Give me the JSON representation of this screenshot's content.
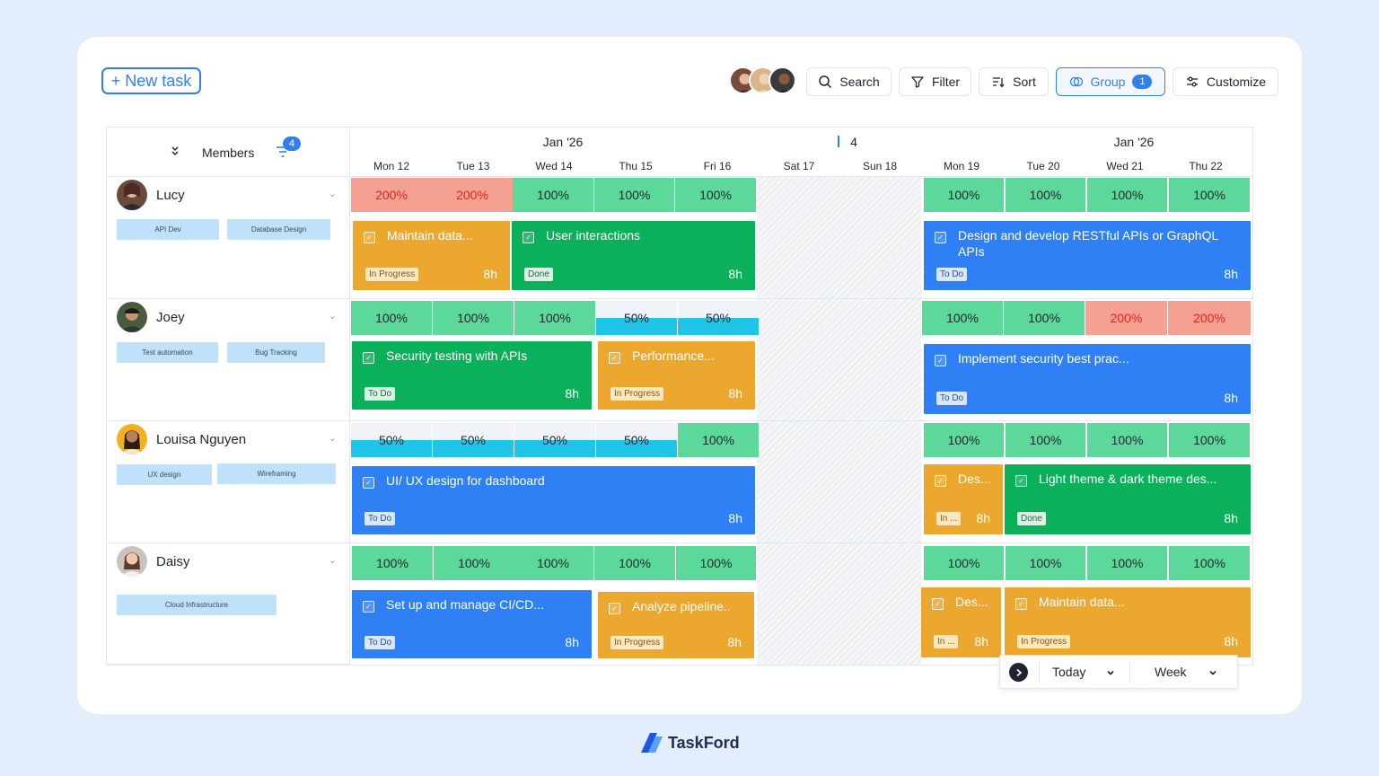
{
  "toolbar": {
    "new_task": "+ New task",
    "search": "Search",
    "filter": "Filter",
    "sort": "Sort",
    "group": "Group",
    "group_count": "1",
    "customize": "Customize"
  },
  "header": {
    "members_label": "Members",
    "members_filter_count": "4",
    "month_left": "Jan '26",
    "week_number": "4",
    "month_right": "Jan '26",
    "days": [
      "Mon 12",
      "Tue 13",
      "Wed 14",
      "Thu 15",
      "Fri 16",
      "Sat 17",
      "Sun 18",
      "Mon 19",
      "Tue 20",
      "Wed 21",
      "Thu 22"
    ]
  },
  "members": [
    {
      "name": "Lucy",
      "tags": [
        "API Dev",
        "Database Design"
      ],
      "capacity": [
        "200%",
        "200%",
        "100%",
        "100%",
        "100%",
        "100%",
        "100%",
        "100%",
        "100%"
      ],
      "tasks": [
        {
          "title": "Maintain data...",
          "status": "In Progress",
          "hours": "8h"
        },
        {
          "title": "User interactions",
          "status": "Done",
          "hours": "8h"
        },
        {
          "title": "Design and develop RESTful APIs or GraphQL APIs",
          "status": "To Do",
          "hours": "8h"
        }
      ]
    },
    {
      "name": "Joey",
      "tags": [
        "Test automation",
        "Bug Tracking"
      ],
      "capacity": [
        "100%",
        "100%",
        "100%",
        "50%",
        "50%",
        "100%",
        "100%",
        "200%",
        "200%"
      ],
      "tasks": [
        {
          "title": "Security testing with APIs",
          "status": "To Do",
          "hours": "8h"
        },
        {
          "title": "Performance...",
          "status": "In Progress",
          "hours": "8h"
        },
        {
          "title": "Implement security best prac...",
          "status": "To Do",
          "hours": "8h"
        }
      ]
    },
    {
      "name": "Louisa Nguyen",
      "tags": [
        "UX design",
        "Wireframing"
      ],
      "capacity": [
        "50%",
        "50%",
        "50%",
        "50%",
        "100%",
        "100%",
        "100%",
        "100%",
        "100%"
      ],
      "tasks": [
        {
          "title": "UI/ UX design for dashboard",
          "status": "To Do",
          "hours": "8h"
        },
        {
          "title": "Des...",
          "status": "In ...",
          "hours": "8h"
        },
        {
          "title": "Light theme & dark theme des...",
          "status": "Done",
          "hours": "8h"
        }
      ]
    },
    {
      "name": "Daisy",
      "tags": [
        "Cloud Infrastructure"
      ],
      "capacity": [
        "100%",
        "100%",
        "100%",
        "100%",
        "100%",
        "100%",
        "100%",
        "100%",
        "100%"
      ],
      "tasks": [
        {
          "title": "Set up and manage CI/CD...",
          "status": "To Do",
          "hours": "8h"
        },
        {
          "title": "Analyze pipeline..",
          "status": "In Progress",
          "hours": "8h"
        },
        {
          "title": "Des...",
          "status": "In ...",
          "hours": "8h"
        },
        {
          "title": "Maintain data...",
          "status": "In Progress",
          "hours": "8h"
        }
      ]
    }
  ],
  "footer_controls": {
    "today": "Today",
    "week": "Week"
  },
  "brand": {
    "name": "TaskFord"
  },
  "colors": {
    "accent": "#2f80ed",
    "capacity_ok": "#5cd99a",
    "capacity_over": "#f5a192",
    "capacity_half": "#1ec5e6",
    "task_orange": "#eca82e",
    "task_green": "#0bb05a",
    "task_blue": "#2f80f5"
  }
}
